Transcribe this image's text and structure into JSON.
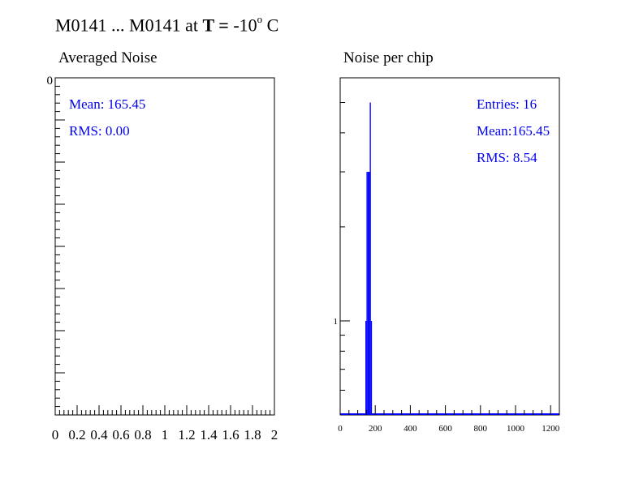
{
  "title": {
    "prefix": "M0141 ... M0141 at ",
    "bold": "T =",
    "value": "  -10",
    "sup": "o",
    "unit": " C"
  },
  "colors": {
    "stats": "#0000ee",
    "hist": "#0000ff",
    "axis": "#000000"
  },
  "chart_data": [
    {
      "type": "histogram",
      "title": "Averaged Noise",
      "xlim": [
        0,
        2
      ],
      "x_tick_labels": [
        "0",
        "0.2",
        "0.4",
        "0.6",
        "0.8",
        "1",
        "1.2",
        "1.4",
        "1.6",
        "1.8",
        "2"
      ],
      "y_tick_labels": [
        "0"
      ],
      "stats": {
        "mean": "Mean: 165.45",
        "rms": "RMS:  0.00"
      },
      "bins": []
    },
    {
      "type": "histogram",
      "title": "Noise per chip",
      "xlim": [
        0,
        1250
      ],
      "x_tick_labels": [
        "0",
        "200",
        "400",
        "600",
        "800",
        "1000",
        "1200"
      ],
      "y_scale": "log",
      "ylim": [
        0.5,
        6
      ],
      "y_tick_labels": [
        "1"
      ],
      "stats": {
        "entries": "Entries:  16",
        "mean": "Mean:165.45",
        "rms": "RMS: 8.54"
      },
      "bin_width": 6.25,
      "bins": [
        {
          "x": 143.75,
          "count": 1
        },
        {
          "x": 150,
          "count": 3
        },
        {
          "x": 156.25,
          "count": 3
        },
        {
          "x": 162.5,
          "count": 3
        },
        {
          "x": 168.75,
          "count": 5
        },
        {
          "x": 175,
          "count": 1
        }
      ]
    }
  ]
}
